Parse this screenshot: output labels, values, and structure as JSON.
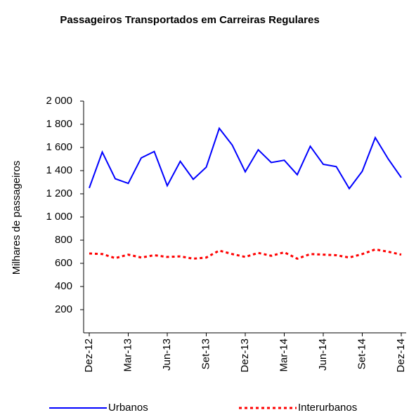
{
  "chart_data": {
    "type": "line",
    "title": "Passageiros Transportados em Carreiras Regulares",
    "y_label": "Milhares de passageiros",
    "categories": [
      "Dez-12",
      null,
      null,
      "Mar-13",
      null,
      null,
      "Jun-13",
      null,
      null,
      "Set-13",
      null,
      null,
      "Dez-13",
      null,
      null,
      "Mar-14",
      null,
      null,
      "Jun-14",
      null,
      null,
      "Set-14",
      null,
      null,
      "Dez-14"
    ],
    "series": [
      {
        "name": "Urbanos",
        "color": "#0000ff",
        "dash": "none",
        "values": [
          1250,
          1560,
          1330,
          1290,
          1510,
          1565,
          1270,
          1480,
          1325,
          1430,
          1765,
          1620,
          1390,
          1580,
          1470,
          1490,
          1365,
          1610,
          1455,
          1435,
          1245,
          1395,
          1685,
          1500,
          1340
        ]
      },
      {
        "name": "Interurbanos",
        "color": "#ff0000",
        "dash": "4 4",
        "values": [
          685,
          680,
          645,
          675,
          650,
          670,
          655,
          660,
          640,
          650,
          710,
          680,
          655,
          690,
          665,
          695,
          640,
          680,
          675,
          670,
          650,
          680,
          720,
          700,
          675
        ]
      }
    ],
    "ylim": [
      0,
      2000
    ],
    "yticks": [
      200,
      400,
      600,
      800,
      {
        "value": 1000,
        "label": "1 000"
      },
      {
        "value": 1200,
        "label": "1 200"
      },
      {
        "value": 1400,
        "label": "1 400"
      },
      {
        "value": 1600,
        "label": "1 600"
      },
      {
        "value": 1800,
        "label": "1 800"
      },
      {
        "value": 2000,
        "label": "2 000"
      }
    ],
    "legend": "bottom"
  }
}
